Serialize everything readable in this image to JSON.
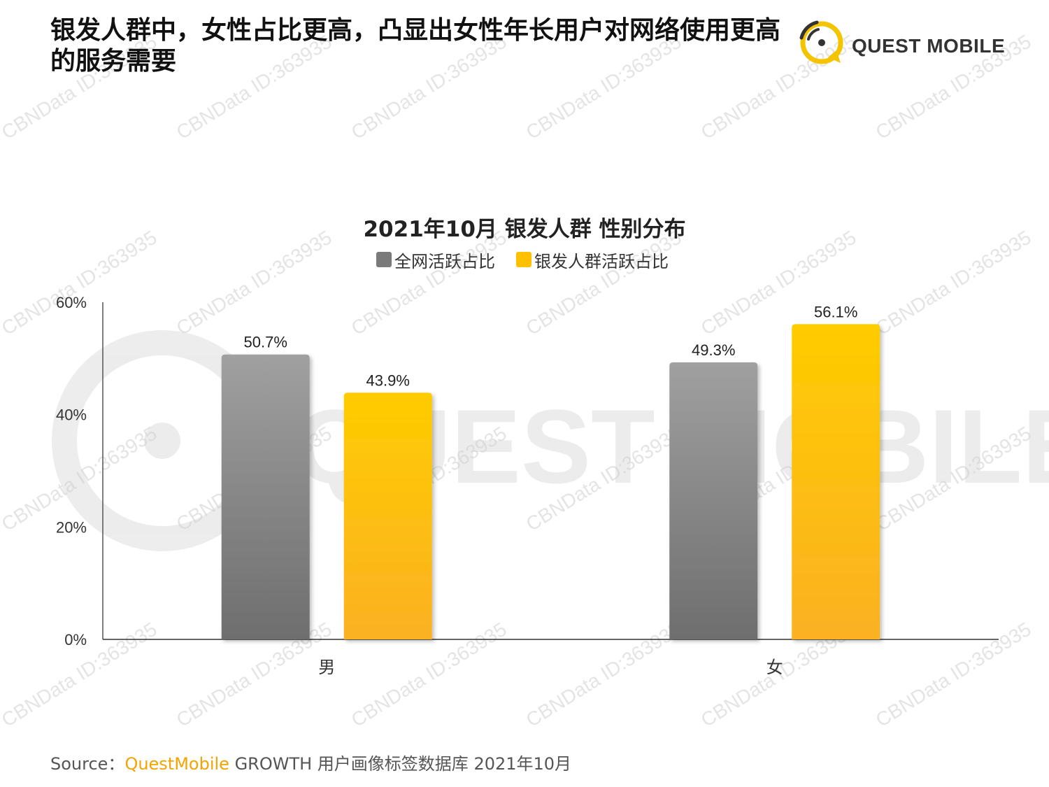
{
  "header": {
    "headline": "银发人群中，女性占比更高，凸显出女性年长用户对网络使用更高的服务需要",
    "logo_text": "QUEST MOBILE",
    "logo_icon": "speech-bubble-signal-icon"
  },
  "watermark": {
    "text": "CBNData ID:363935",
    "background_logo_text": "QUEST MOBILE"
  },
  "colors": {
    "accent": "#f5a300",
    "series_gray_top": "#a0a0a0",
    "series_gray_bottom": "#6e6e6e",
    "series_yellow_top": "#ffcc00",
    "series_yellow_bottom": "#fbb123"
  },
  "chart_data": {
    "type": "bar",
    "title": "2021年10月 银发人群 性别分布",
    "categories": [
      "男",
      "女"
    ],
    "series": [
      {
        "name": "全网活跃占比",
        "values": [
          50.7,
          49.3
        ],
        "labels": [
          "50.7%",
          "49.3%"
        ],
        "color": "gray"
      },
      {
        "name": "银发人群活跃占比",
        "values": [
          43.9,
          56.1
        ],
        "labels": [
          "43.9%",
          "56.1%"
        ],
        "color": "yellow"
      }
    ],
    "ylim": [
      0,
      60
    ],
    "yticks": [
      0,
      20,
      40,
      60
    ],
    "ytick_labels": [
      "0%",
      "20%",
      "40%",
      "60%"
    ],
    "xlabel": "",
    "ylabel": "",
    "grid": false,
    "legend_position": "top-center"
  },
  "source": {
    "prefix": "Source：",
    "brand": "QuestMobile",
    "rest": " GROWTH 用户画像标签数据库 2021年10月"
  }
}
